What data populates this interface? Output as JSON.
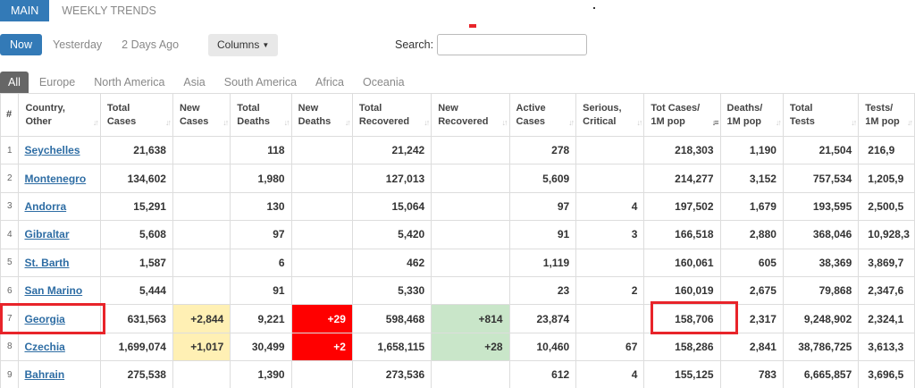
{
  "top_tabs": {
    "main": "MAIN",
    "weekly": "WEEKLY TRENDS"
  },
  "day_filters": {
    "now": "Now",
    "yesterday": "Yesterday",
    "two_days": "2 Days Ago"
  },
  "columns_button": "Columns",
  "search": {
    "label": "Search:",
    "value": ""
  },
  "region_tabs": [
    "All",
    "Europe",
    "North America",
    "Asia",
    "South America",
    "Africa",
    "Oceania"
  ],
  "headers": [
    [
      "#",
      ""
    ],
    [
      "Country,",
      "Other"
    ],
    [
      "Total",
      "Cases"
    ],
    [
      "New",
      "Cases"
    ],
    [
      "Total",
      "Deaths"
    ],
    [
      "New",
      "Deaths"
    ],
    [
      "Total",
      "Recovered"
    ],
    [
      "New",
      "Recovered"
    ],
    [
      "Active",
      "Cases"
    ],
    [
      "Serious,",
      "Critical"
    ],
    [
      "Tot Cases/",
      "1M pop"
    ],
    [
      "Deaths/",
      "1M pop"
    ],
    [
      "Total",
      "Tests"
    ],
    [
      "Tests/",
      "1M pop"
    ]
  ],
  "rows": [
    {
      "idx": "1",
      "country": "Seychelles",
      "total_cases": "21,638",
      "new_cases": "",
      "total_deaths": "118",
      "new_deaths": "",
      "total_recovered": "21,242",
      "new_recovered": "",
      "active": "278",
      "critical": "",
      "cases_per_m": "218,303",
      "deaths_per_m": "1,190",
      "tests": "21,504",
      "tests_per_m": "216,9"
    },
    {
      "idx": "2",
      "country": "Montenegro",
      "total_cases": "134,602",
      "new_cases": "",
      "total_deaths": "1,980",
      "new_deaths": "",
      "total_recovered": "127,013",
      "new_recovered": "",
      "active": "5,609",
      "critical": "",
      "cases_per_m": "214,277",
      "deaths_per_m": "3,152",
      "tests": "757,534",
      "tests_per_m": "1,205,9"
    },
    {
      "idx": "3",
      "country": "Andorra",
      "total_cases": "15,291",
      "new_cases": "",
      "total_deaths": "130",
      "new_deaths": "",
      "total_recovered": "15,064",
      "new_recovered": "",
      "active": "97",
      "critical": "4",
      "cases_per_m": "197,502",
      "deaths_per_m": "1,679",
      "tests": "193,595",
      "tests_per_m": "2,500,5"
    },
    {
      "idx": "4",
      "country": "Gibraltar",
      "total_cases": "5,608",
      "new_cases": "",
      "total_deaths": "97",
      "new_deaths": "",
      "total_recovered": "5,420",
      "new_recovered": "",
      "active": "91",
      "critical": "3",
      "cases_per_m": "166,518",
      "deaths_per_m": "2,880",
      "tests": "368,046",
      "tests_per_m": "10,928,3"
    },
    {
      "idx": "5",
      "country": "St. Barth",
      "total_cases": "1,587",
      "new_cases": "",
      "total_deaths": "6",
      "new_deaths": "",
      "total_recovered": "462",
      "new_recovered": "",
      "active": "1,119",
      "critical": "",
      "cases_per_m": "160,061",
      "deaths_per_m": "605",
      "tests": "38,369",
      "tests_per_m": "3,869,7"
    },
    {
      "idx": "6",
      "country": "San Marino",
      "total_cases": "5,444",
      "new_cases": "",
      "total_deaths": "91",
      "new_deaths": "",
      "total_recovered": "5,330",
      "new_recovered": "",
      "active": "23",
      "critical": "2",
      "cases_per_m": "160,019",
      "deaths_per_m": "2,675",
      "tests": "79,868",
      "tests_per_m": "2,347,6"
    },
    {
      "idx": "7",
      "country": "Georgia",
      "total_cases": "631,563",
      "new_cases": "+2,844",
      "total_deaths": "9,221",
      "new_deaths": "+29",
      "total_recovered": "598,468",
      "new_recovered": "+814",
      "active": "23,874",
      "critical": "",
      "cases_per_m": "158,706",
      "deaths_per_m": "2,317",
      "tests": "9,248,902",
      "tests_per_m": "2,324,1"
    },
    {
      "idx": "8",
      "country": "Czechia",
      "total_cases": "1,699,074",
      "new_cases": "+1,017",
      "total_deaths": "30,499",
      "new_deaths": "+2",
      "total_recovered": "1,658,115",
      "new_recovered": "+28",
      "active": "10,460",
      "critical": "67",
      "cases_per_m": "158,286",
      "deaths_per_m": "2,841",
      "tests": "38,786,725",
      "tests_per_m": "3,613,3"
    },
    {
      "idx": "9",
      "country": "Bahrain",
      "total_cases": "275,538",
      "new_cases": "",
      "total_deaths": "1,390",
      "new_deaths": "",
      "total_recovered": "273,536",
      "new_recovered": "",
      "active": "612",
      "critical": "4",
      "cases_per_m": "155,125",
      "deaths_per_m": "783",
      "tests": "6,665,857",
      "tests_per_m": "3,696,5"
    }
  ],
  "colors": {
    "accent": "#337ab7",
    "highlight_box": "#e8242a",
    "new_cases_bg": "#fff0b4",
    "new_deaths_bg": "#ff0000",
    "new_recovered_bg": "#c9e6c9"
  }
}
